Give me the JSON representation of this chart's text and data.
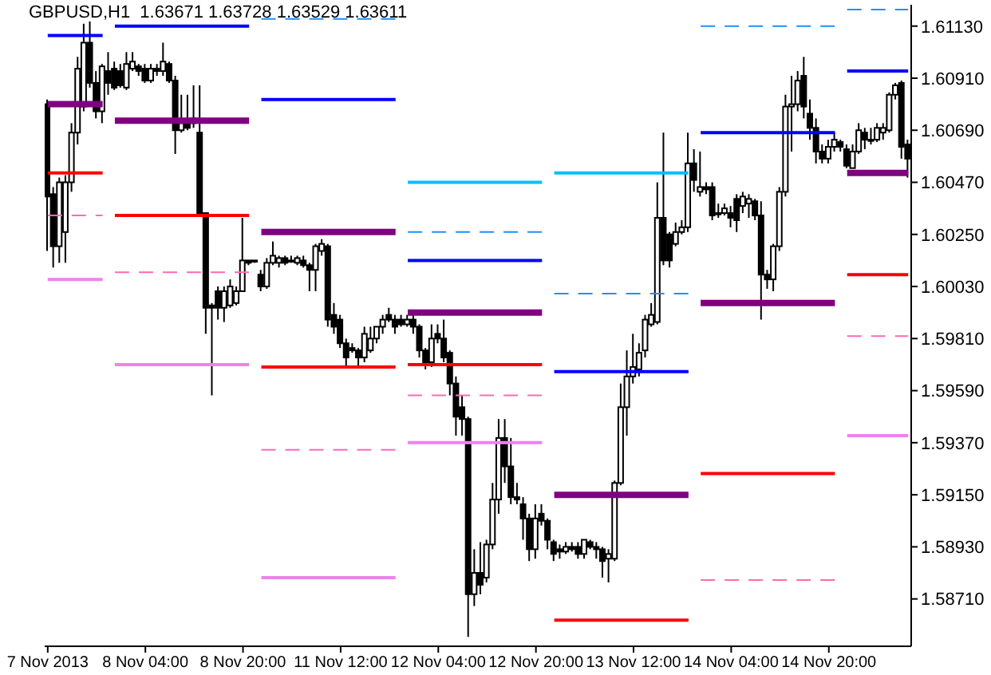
{
  "chart_data": {
    "type": "candlestick",
    "title": "GBPUSD,H1  1.63671 1.63728 1.63529 1.63611",
    "color": "#000000",
    "categories": [
      "7 Nov 2013",
      null,
      null,
      null,
      null,
      null,
      null,
      null,
      null,
      null,
      null,
      null,
      null,
      null,
      null,
      null,
      "8 Nov 04:00",
      null,
      null,
      null,
      null,
      null,
      null,
      null,
      null,
      null,
      null,
      null,
      null,
      null,
      null,
      null,
      "8 Nov 20:00",
      null,
      null,
      null,
      null,
      null,
      null,
      null,
      null,
      null,
      null,
      null,
      null,
      null,
      null,
      null,
      "11 Nov 12:00",
      null,
      null,
      null,
      null,
      null,
      null,
      null,
      null,
      null,
      null,
      null,
      null,
      null,
      null,
      null,
      "12 Nov 04:00",
      null,
      null,
      null,
      null,
      null,
      null,
      null,
      null,
      null,
      null,
      null,
      null,
      null,
      null,
      null,
      "12 Nov 20:00",
      null,
      null,
      null,
      null,
      null,
      null,
      null,
      null,
      null,
      null,
      null,
      null,
      null,
      null,
      null,
      "13 Nov 12:00",
      null,
      null,
      null,
      null,
      null,
      null,
      null,
      null,
      null,
      null,
      null,
      null,
      null,
      null,
      null,
      "14 Nov 04:00",
      null,
      null,
      null,
      null,
      null,
      null,
      null,
      null,
      null,
      null,
      null,
      null,
      null,
      null,
      null,
      "14 Nov 20:00",
      null,
      null,
      null,
      null,
      null,
      null,
      null,
      null,
      null,
      null,
      null,
      null,
      null
    ],
    "ohlc": [
      [
        1.608,
        1.6082,
        1.6018,
        1.6041
      ],
      [
        1.6042,
        1.6045,
        1.6011,
        1.602
      ],
      [
        1.602,
        1.6049,
        1.6013,
        1.6047
      ],
      [
        1.6026,
        1.605,
        1.6013,
        1.6047
      ],
      [
        1.6047,
        1.6072,
        1.6043,
        1.6068
      ],
      [
        1.6068,
        1.61,
        1.6063,
        1.6095
      ],
      [
        1.6079,
        1.6114,
        1.6077,
        1.6106
      ],
      [
        1.6106,
        1.6115,
        1.6087,
        1.6089
      ],
      [
        1.6089,
        1.6094,
        1.6074,
        1.6077
      ],
      [
        1.6077,
        1.6097,
        1.6072,
        1.6096
      ],
      [
        1.6094,
        1.6102,
        1.6084,
        1.6089
      ],
      [
        1.6095,
        1.6098,
        1.6086,
        1.6087
      ],
      [
        1.6094,
        1.6097,
        1.6087,
        1.6088
      ],
      [
        1.6087,
        1.6102,
        1.6086,
        1.6097
      ],
      [
        1.6095,
        1.6102,
        1.6094,
        1.6098
      ],
      [
        1.6096,
        1.6097,
        1.6092,
        1.6094
      ],
      [
        1.6095,
        1.6097,
        1.6089,
        1.609
      ],
      [
        1.609,
        1.6097,
        1.6089,
        1.6095
      ],
      [
        1.6095,
        1.6097,
        1.6092,
        1.6094
      ],
      [
        1.6094,
        1.6106,
        1.6092,
        1.6098
      ],
      [
        1.6097,
        1.6098,
        1.6089,
        1.609
      ],
      [
        1.609,
        1.6092,
        1.6059,
        1.6069
      ],
      [
        1.6069,
        1.6084,
        1.6068,
        1.6072
      ],
      [
        1.6072,
        1.6084,
        1.6069,
        1.607
      ],
      [
        1.6074,
        1.6088,
        1.607,
        1.6072
      ],
      [
        1.6068,
        1.6088,
        1.6033,
        1.6034
      ],
      [
        1.6034,
        1.6034,
        1.5983,
        1.5994
      ],
      [
        1.5995,
        1.5996,
        1.5957,
        1.5994
      ],
      [
        1.6001,
        1.6003,
        1.5989,
        1.5994
      ],
      [
        1.5994,
        1.6003,
        1.5988,
        1.6001
      ],
      [
        1.5995,
        1.6006,
        1.5994,
        1.6003
      ],
      [
        1.5996,
        1.6003,
        1.5995,
        1.6001
      ],
      [
        1.6001,
        1.6032,
        1.6001,
        1.6014
      ],
      [
        1.6014,
        1.6014,
        1.6012,
        1.6013
      ],
      [
        1.6014,
        1.6014,
        1.6013,
        1.6014
      ],
      [
        1.6008,
        1.601,
        1.6001,
        1.6003
      ],
      [
        1.6003,
        1.6015,
        1.6002,
        1.6013
      ],
      [
        1.6013,
        1.6022,
        1.6012,
        1.6016
      ],
      [
        1.6013,
        1.6016,
        1.6011,
        1.6015
      ],
      [
        1.6015,
        1.6016,
        1.6012,
        1.6013
      ],
      [
        1.6014,
        1.6016,
        1.6013,
        1.6014
      ],
      [
        1.6013,
        1.6016,
        1.6012,
        1.6015
      ],
      [
        1.6014,
        1.6016,
        1.6011,
        1.6012
      ],
      [
        1.6012,
        1.6013,
        1.6001,
        1.601
      ],
      [
        1.601,
        1.6021,
        1.6001,
        1.602
      ],
      [
        1.6018,
        1.6023,
        1.6016,
        1.6021
      ],
      [
        1.602,
        1.6021,
        1.5986,
        1.5989
      ],
      [
        1.5991,
        1.5996,
        1.5983,
        1.5986
      ],
      [
        1.5989,
        1.5991,
        1.5977,
        1.5979
      ],
      [
        1.5979,
        1.5981,
        1.5969,
        1.5973
      ],
      [
        1.5977,
        1.5979,
        1.5975,
        1.5976
      ],
      [
        1.5976,
        1.5977,
        1.5969,
        1.5973
      ],
      [
        1.5973,
        1.5986,
        1.5971,
        1.5983
      ],
      [
        1.5976,
        1.5986,
        1.5975,
        1.5981
      ],
      [
        1.5981,
        1.5986,
        1.5979,
        1.5986
      ],
      [
        1.5986,
        1.5991,
        1.5983,
        1.5989
      ],
      [
        1.5991,
        1.5994,
        1.5988,
        1.5989
      ],
      [
        1.5989,
        1.5991,
        1.5983,
        1.5986
      ],
      [
        1.5989,
        1.5991,
        1.5986,
        1.5987
      ],
      [
        1.5987,
        1.5991,
        1.5986,
        1.5989
      ],
      [
        1.5989,
        1.5991,
        1.5983,
        1.5986
      ],
      [
        1.5986,
        1.5987,
        1.5973,
        1.5976
      ],
      [
        1.5976,
        1.5977,
        1.5968,
        1.5971
      ],
      [
        1.5971,
        1.5987,
        1.5969,
        1.5981
      ],
      [
        1.5983,
        1.5987,
        1.5979,
        1.5981
      ],
      [
        1.5981,
        1.5989,
        1.5971,
        1.5973
      ],
      [
        1.5975,
        1.5976,
        1.5957,
        1.5962
      ],
      [
        1.5962,
        1.5965,
        1.594,
        1.5948
      ],
      [
        1.5952,
        1.5957,
        1.594,
        1.5947
      ],
      [
        1.5947,
        1.5948,
        1.5855,
        1.5873
      ],
      [
        1.5873,
        1.5892,
        1.5868,
        1.5882
      ],
      [
        1.5882,
        1.5895,
        1.5873,
        1.5877
      ],
      [
        1.588,
        1.5896,
        1.5878,
        1.5894
      ],
      [
        1.5894,
        1.592,
        1.5892,
        1.5913
      ],
      [
        1.5913,
        1.5947,
        1.5907,
        1.5939
      ],
      [
        1.5939,
        1.5947,
        1.592,
        1.5927
      ],
      [
        1.5927,
        1.5939,
        1.5911,
        1.5914
      ],
      [
        1.5914,
        1.592,
        1.5911,
        1.5913
      ],
      [
        1.5911,
        1.5914,
        1.5896,
        1.5905
      ],
      [
        1.5905,
        1.5907,
        1.5887,
        1.5892
      ],
      [
        1.5892,
        1.5911,
        1.5888,
        1.5905
      ],
      [
        1.5907,
        1.5911,
        1.5902,
        1.5904
      ],
      [
        1.5904,
        1.5905,
        1.5892,
        1.5896
      ],
      [
        1.5895,
        1.5896,
        1.5887,
        1.589
      ],
      [
        1.5892,
        1.5894,
        1.5888,
        1.5891
      ],
      [
        1.5891,
        1.5895,
        1.589,
        1.5893
      ],
      [
        1.5893,
        1.5895,
        1.5891,
        1.5892
      ],
      [
        1.5893,
        1.5895,
        1.5888,
        1.589
      ],
      [
        1.589,
        1.5896,
        1.5888,
        1.5896
      ],
      [
        1.5895,
        1.5896,
        1.5892,
        1.5893
      ],
      [
        1.5893,
        1.5895,
        1.5888,
        1.5892
      ],
      [
        1.5892,
        1.5893,
        1.588,
        1.5887
      ],
      [
        1.5888,
        1.5892,
        1.5878,
        1.589
      ],
      [
        1.5888,
        1.5921,
        1.5887,
        1.592
      ],
      [
        1.592,
        1.5962,
        1.5919,
        1.5952
      ],
      [
        1.5952,
        1.5976,
        1.594,
        1.5965
      ],
      [
        1.5965,
        1.5983,
        1.5962,
        1.5969
      ],
      [
        1.5968,
        1.5979,
        1.5965,
        1.5975
      ],
      [
        1.5976,
        1.5991,
        1.5973,
        1.5989
      ],
      [
        1.5987,
        1.5996,
        1.5986,
        1.5991
      ],
      [
        1.5988,
        1.6047,
        1.5987,
        1.6032
      ],
      [
        1.6032,
        1.6068,
        1.6012,
        1.6014
      ],
      [
        1.6025,
        1.6026,
        1.6011,
        1.6014
      ],
      [
        1.6021,
        1.603,
        1.602,
        1.6026
      ],
      [
        1.6026,
        1.6031,
        1.6025,
        1.6028
      ],
      [
        1.6028,
        1.6068,
        1.6026,
        1.6055
      ],
      [
        1.6055,
        1.6061,
        1.6043,
        1.6048
      ],
      [
        1.6043,
        1.606,
        1.6041,
        1.6045
      ],
      [
        1.6045,
        1.6047,
        1.6042,
        1.6044
      ],
      [
        1.6045,
        1.6047,
        1.6031,
        1.6033
      ],
      [
        1.6034,
        1.6038,
        1.6032,
        1.6034
      ],
      [
        1.6034,
        1.6038,
        1.6033,
        1.6036
      ],
      [
        1.6034,
        1.6037,
        1.6028,
        1.6032
      ],
      [
        1.604,
        1.6042,
        1.6026,
        1.6031
      ],
      [
        1.6037,
        1.6043,
        1.6034,
        1.6041
      ],
      [
        1.6038,
        1.6042,
        1.6032,
        1.604
      ],
      [
        1.6039,
        1.604,
        1.6031,
        1.6033
      ],
      [
        1.6033,
        1.6039,
        1.5989,
        1.6008
      ],
      [
        1.6008,
        1.601,
        1.6002,
        1.6006
      ],
      [
        1.6006,
        1.6021,
        1.6001,
        1.602
      ],
      [
        1.602,
        1.6045,
        1.6018,
        1.6043
      ],
      [
        1.6043,
        1.6084,
        1.6041,
        1.6079
      ],
      [
        1.6079,
        1.6092,
        1.606,
        1.608
      ],
      [
        1.608,
        1.6094,
        1.6077,
        1.609
      ],
      [
        1.6092,
        1.61,
        1.6074,
        1.6079
      ],
      [
        1.6076,
        1.6082,
        1.6065,
        1.607
      ],
      [
        1.607,
        1.6074,
        1.6055,
        1.606
      ],
      [
        1.606,
        1.6063,
        1.6055,
        1.6057
      ],
      [
        1.6057,
        1.6065,
        1.6055,
        1.6062
      ],
      [
        1.6062,
        1.6068,
        1.606,
        1.6065
      ],
      [
        1.6064,
        1.6065,
        1.606,
        1.6062
      ],
      [
        1.6061,
        1.6063,
        1.6053,
        1.6054
      ],
      [
        1.6053,
        1.6063,
        1.6053,
        1.606
      ],
      [
        1.606,
        1.6072,
        1.6059,
        1.6069
      ],
      [
        1.6068,
        1.607,
        1.6061,
        1.6065
      ],
      [
        1.6065,
        1.607,
        1.6063,
        1.6065
      ],
      [
        1.6065,
        1.6072,
        1.6064,
        1.607
      ],
      [
        1.6068,
        1.6072,
        1.6065,
        1.607
      ],
      [
        1.6069,
        1.6085,
        1.6068,
        1.6084
      ],
      [
        1.6084,
        1.6089,
        1.6082,
        1.6088
      ],
      [
        1.6089,
        1.609,
        1.6057,
        1.6062
      ],
      [
        1.6063,
        1.6065,
        1.6049,
        1.6057
      ]
    ],
    "series": [
      {
        "type": "line",
        "color": "#800080",
        "line_style": "solid",
        "values": [
          1.608,
          1.608,
          1.608,
          1.608,
          1.608,
          1.608,
          1.608,
          1.608,
          1.608,
          1.608,
          null,
          1.6073,
          1.6073,
          1.6073,
          1.6073,
          1.6073,
          1.6073,
          1.6073,
          1.6073,
          1.6073,
          1.6073,
          1.6073,
          1.6073,
          1.6073,
          1.6073,
          1.6073,
          1.6073,
          1.6073,
          1.6073,
          1.6073,
          1.6073,
          1.6073,
          1.6073,
          1.6073,
          null,
          1.6026,
          1.6026,
          1.6026,
          1.6026,
          1.6026,
          1.6026,
          1.6026,
          1.6026,
          1.6026,
          1.6026,
          1.6026,
          1.6026,
          1.6026,
          1.6026,
          1.6026,
          1.6026,
          1.6026,
          1.6026,
          1.6026,
          1.6026,
          1.6026,
          1.6026,
          1.6026,
          null,
          1.5992,
          1.5992,
          1.5992,
          1.5992,
          1.5992,
          1.5992,
          1.5992,
          1.5992,
          1.5992,
          1.5992,
          1.5992,
          1.5992,
          1.5992,
          1.5992,
          1.5992,
          1.5992,
          1.5992,
          1.5992,
          1.5992,
          1.5992,
          1.5992,
          1.5992,
          1.5992,
          null,
          1.5915,
          1.5915,
          1.5915,
          1.5915,
          1.5915,
          1.5915,
          1.5915,
          1.5915,
          1.5915,
          1.5915,
          1.5915,
          1.5915,
          1.5915,
          1.5915,
          1.5915,
          1.5915,
          1.5915,
          1.5915,
          1.5915,
          1.5915,
          1.5915,
          1.5915,
          1.5915,
          null,
          1.5996,
          1.5996,
          1.5996,
          1.5996,
          1.5996,
          1.5996,
          1.5996,
          1.5996,
          1.5996,
          1.5996,
          1.5996,
          1.5996,
          1.5996,
          1.5996,
          1.5996,
          1.5996,
          1.5996,
          1.5996,
          1.5996,
          1.5996,
          1.5996,
          1.5996,
          1.5996,
          null,
          1.6051,
          1.6051,
          1.6051,
          1.6051,
          1.6051,
          1.6051,
          1.6051,
          1.6051,
          1.6051,
          1.6051,
          1.6051
        ]
      },
      {
        "type": "line",
        "color": "#0000ff",
        "line_style": "solid",
        "values": [
          1.6109,
          1.6109,
          1.6109,
          1.6109,
          1.6109,
          1.6109,
          1.6109,
          1.6109,
          1.6109,
          1.6109,
          null,
          1.6113,
          1.6113,
          1.6113,
          1.6113,
          1.6113,
          1.6113,
          1.6113,
          1.6113,
          1.6113,
          1.6113,
          1.6113,
          1.6113,
          1.6113,
          1.6113,
          1.6113,
          1.6113,
          1.6113,
          1.6113,
          1.6113,
          1.6113,
          1.6113,
          1.6113,
          1.6113,
          null,
          1.6082,
          1.6082,
          1.6082,
          1.6082,
          1.6082,
          1.6082,
          1.6082,
          1.6082,
          1.6082,
          1.6082,
          1.6082,
          1.6082,
          1.6082,
          1.6082,
          1.6082,
          1.6082,
          1.6082,
          1.6082,
          1.6082,
          1.6082,
          1.6082,
          1.6082,
          1.6082,
          null,
          1.6014,
          1.6014,
          1.6014,
          1.6014,
          1.6014,
          1.6014,
          1.6014,
          1.6014,
          1.6014,
          1.6014,
          1.6014,
          1.6014,
          1.6014,
          1.6014,
          1.6014,
          1.6014,
          1.6014,
          1.6014,
          1.6014,
          1.6014,
          1.6014,
          1.6014,
          1.6014,
          null,
          1.5967,
          1.5967,
          1.5967,
          1.5967,
          1.5967,
          1.5967,
          1.5967,
          1.5967,
          1.5967,
          1.5967,
          1.5967,
          1.5967,
          1.5967,
          1.5967,
          1.5967,
          1.5967,
          1.5967,
          1.5967,
          1.5967,
          1.5967,
          1.5967,
          1.5967,
          1.5967,
          null,
          1.6068,
          1.6068,
          1.6068,
          1.6068,
          1.6068,
          1.6068,
          1.6068,
          1.6068,
          1.6068,
          1.6068,
          1.6068,
          1.6068,
          1.6068,
          1.6068,
          1.6068,
          1.6068,
          1.6068,
          1.6068,
          1.6068,
          1.6068,
          1.6068,
          1.6068,
          1.6068,
          null,
          1.6094,
          1.6094,
          1.6094,
          1.6094,
          1.6094,
          1.6094,
          1.6094,
          1.6094,
          1.6094,
          1.6094,
          1.6094
        ]
      },
      {
        "type": "line",
        "color": "#ff0000",
        "line_style": "solid",
        "values": [
          1.6051,
          1.6051,
          1.6051,
          1.6051,
          1.6051,
          1.6051,
          1.6051,
          1.6051,
          1.6051,
          1.6051,
          null,
          1.6033,
          1.6033,
          1.6033,
          1.6033,
          1.6033,
          1.6033,
          1.6033,
          1.6033,
          1.6033,
          1.6033,
          1.6033,
          1.6033,
          1.6033,
          1.6033,
          1.6033,
          1.6033,
          1.6033,
          1.6033,
          1.6033,
          1.6033,
          1.6033,
          1.6033,
          1.6033,
          null,
          1.5969,
          1.5969,
          1.5969,
          1.5969,
          1.5969,
          1.5969,
          1.5969,
          1.5969,
          1.5969,
          1.5969,
          1.5969,
          1.5969,
          1.5969,
          1.5969,
          1.5969,
          1.5969,
          1.5969,
          1.5969,
          1.5969,
          1.5969,
          1.5969,
          1.5969,
          1.5969,
          null,
          1.597,
          1.597,
          1.597,
          1.597,
          1.597,
          1.597,
          1.597,
          1.597,
          1.597,
          1.597,
          1.597,
          1.597,
          1.597,
          1.597,
          1.597,
          1.597,
          1.597,
          1.597,
          1.597,
          1.597,
          1.597,
          1.597,
          1.597,
          null,
          1.5862,
          1.5862,
          1.5862,
          1.5862,
          1.5862,
          1.5862,
          1.5862,
          1.5862,
          1.5862,
          1.5862,
          1.5862,
          1.5862,
          1.5862,
          1.5862,
          1.5862,
          1.5862,
          1.5862,
          1.5862,
          1.5862,
          1.5862,
          1.5862,
          1.5862,
          1.5862,
          null,
          1.5924,
          1.5924,
          1.5924,
          1.5924,
          1.5924,
          1.5924,
          1.5924,
          1.5924,
          1.5924,
          1.5924,
          1.5924,
          1.5924,
          1.5924,
          1.5924,
          1.5924,
          1.5924,
          1.5924,
          1.5924,
          1.5924,
          1.5924,
          1.5924,
          1.5924,
          1.5924,
          null,
          1.6008,
          1.6008,
          1.6008,
          1.6008,
          1.6008,
          1.6008,
          1.6008,
          1.6008,
          1.6008,
          1.6008,
          1.6008
        ]
      },
      {
        "type": "line",
        "color": "#ee82ee",
        "line_style": "solid",
        "values": [
          1.6006,
          1.6006,
          1.6006,
          1.6006,
          1.6006,
          1.6006,
          1.6006,
          1.6006,
          1.6006,
          1.6006,
          null,
          1.597,
          1.597,
          1.597,
          1.597,
          1.597,
          1.597,
          1.597,
          1.597,
          1.597,
          1.597,
          1.597,
          1.597,
          1.597,
          1.597,
          1.597,
          1.597,
          1.597,
          1.597,
          1.597,
          1.597,
          1.597,
          1.597,
          1.597,
          null,
          1.588,
          1.588,
          1.588,
          1.588,
          1.588,
          1.588,
          1.588,
          1.588,
          1.588,
          1.588,
          1.588,
          1.588,
          1.588,
          1.588,
          1.588,
          1.588,
          1.588,
          1.588,
          1.588,
          1.588,
          1.588,
          1.588,
          1.588,
          null,
          1.5937,
          1.5937,
          1.5937,
          1.5937,
          1.5937,
          1.5937,
          1.5937,
          1.5937,
          1.5937,
          1.5937,
          1.5937,
          1.5937,
          1.5937,
          1.5937,
          1.5937,
          1.5937,
          1.5937,
          1.5937,
          1.5937,
          1.5937,
          1.5937,
          1.5937,
          1.5937,
          null,
          null,
          null,
          null,
          null,
          null,
          null,
          null,
          null,
          null,
          null,
          null,
          null,
          null,
          null,
          null,
          null,
          null,
          null,
          null,
          null,
          null,
          null,
          null,
          null,
          null,
          null,
          null,
          null,
          null,
          null,
          null,
          null,
          null,
          null,
          null,
          null,
          null,
          null,
          null,
          null,
          null,
          null,
          null,
          null,
          null,
          null,
          null,
          null,
          1.594,
          1.594,
          1.594,
          1.594,
          1.594,
          1.594,
          1.594,
          1.594,
          1.594,
          1.594,
          1.594
        ]
      },
      {
        "type": "line",
        "color": "#00bfff",
        "line_style": "solid",
        "values": [
          null,
          null,
          null,
          null,
          null,
          null,
          null,
          null,
          null,
          null,
          null,
          null,
          null,
          null,
          null,
          null,
          null,
          null,
          null,
          null,
          null,
          null,
          null,
          null,
          null,
          null,
          null,
          null,
          null,
          null,
          null,
          null,
          null,
          null,
          null,
          null,
          null,
          null,
          null,
          null,
          null,
          null,
          null,
          null,
          null,
          null,
          null,
          null,
          null,
          null,
          null,
          null,
          null,
          null,
          null,
          null,
          null,
          null,
          null,
          1.6047,
          1.6047,
          1.6047,
          1.6047,
          1.6047,
          1.6047,
          1.6047,
          1.6047,
          1.6047,
          1.6047,
          1.6047,
          1.6047,
          1.6047,
          1.6047,
          1.6047,
          1.6047,
          1.6047,
          1.6047,
          1.6047,
          1.6047,
          1.6047,
          1.6047,
          1.6047,
          null,
          1.6051,
          1.6051,
          1.6051,
          1.6051,
          1.6051,
          1.6051,
          1.6051,
          1.6051,
          1.6051,
          1.6051,
          1.6051,
          1.6051,
          1.6051,
          1.6051,
          1.6051,
          1.6051,
          1.6051,
          1.6051,
          1.6051,
          1.6051,
          1.6051,
          1.6051,
          1.6051,
          null,
          null,
          null,
          null,
          null,
          null,
          null,
          null,
          null,
          null,
          null,
          null,
          null,
          null,
          null,
          null,
          null,
          null,
          null,
          null,
          null,
          null,
          null,
          null,
          null,
          null,
          null,
          null,
          null,
          null,
          null,
          null,
          null,
          null,
          null,
          null
        ]
      },
      {
        "type": "line",
        "color": "#1e90ff",
        "line_style": "dashed",
        "values": [
          null,
          null,
          null,
          null,
          null,
          null,
          null,
          null,
          null,
          null,
          null,
          null,
          null,
          null,
          null,
          null,
          null,
          null,
          null,
          null,
          null,
          null,
          null,
          null,
          null,
          null,
          null,
          null,
          null,
          null,
          null,
          null,
          null,
          null,
          null,
          1.6116,
          1.6116,
          1.6116,
          1.6116,
          1.6116,
          1.6116,
          1.6116,
          1.6116,
          1.6116,
          1.6116,
          1.6116,
          1.6116,
          1.6116,
          1.6116,
          1.6116,
          1.6116,
          1.6116,
          1.6116,
          1.6116,
          1.6116,
          1.6116,
          1.6116,
          1.6116,
          null,
          1.6026,
          1.6026,
          1.6026,
          1.6026,
          1.6026,
          1.6026,
          1.6026,
          1.6026,
          1.6026,
          1.6026,
          1.6026,
          1.6026,
          1.6026,
          1.6026,
          1.6026,
          1.6026,
          1.6026,
          1.6026,
          1.6026,
          1.6026,
          1.6026,
          1.6026,
          1.6026,
          null,
          1.6,
          1.6,
          1.6,
          1.6,
          1.6,
          1.6,
          1.6,
          1.6,
          1.6,
          1.6,
          1.6,
          1.6,
          1.6,
          1.6,
          1.6,
          1.6,
          1.6,
          1.6,
          1.6,
          1.6,
          1.6,
          1.6,
          1.6,
          null,
          1.6113,
          1.6113,
          1.6113,
          1.6113,
          1.6113,
          1.6113,
          1.6113,
          1.6113,
          1.6113,
          1.6113,
          1.6113,
          1.6113,
          1.6113,
          1.6113,
          1.6113,
          1.6113,
          1.6113,
          1.6113,
          1.6113,
          1.6113,
          1.6113,
          1.6113,
          1.6113,
          null,
          1.612,
          1.612,
          1.612,
          1.612,
          1.612,
          1.612,
          1.612,
          1.612,
          1.612,
          1.612,
          1.612
        ]
      },
      {
        "type": "line",
        "color": "#ff69b4",
        "line_style": "dashed",
        "values": [
          1.6033,
          1.6033,
          1.6033,
          1.6033,
          1.6033,
          1.6033,
          1.6033,
          1.6033,
          1.6033,
          1.6033,
          null,
          1.6009,
          1.6009,
          1.6009,
          1.6009,
          1.6009,
          1.6009,
          1.6009,
          1.6009,
          1.6009,
          1.6009,
          1.6009,
          1.6009,
          1.6009,
          1.6009,
          1.6009,
          1.6009,
          1.6009,
          1.6009,
          1.6009,
          1.6009,
          1.6009,
          1.6009,
          1.6009,
          null,
          1.5934,
          1.5934,
          1.5934,
          1.5934,
          1.5934,
          1.5934,
          1.5934,
          1.5934,
          1.5934,
          1.5934,
          1.5934,
          1.5934,
          1.5934,
          1.5934,
          1.5934,
          1.5934,
          1.5934,
          1.5934,
          1.5934,
          1.5934,
          1.5934,
          1.5934,
          1.5934,
          null,
          1.5957,
          1.5957,
          1.5957,
          1.5957,
          1.5957,
          1.5957,
          1.5957,
          1.5957,
          1.5957,
          1.5957,
          1.5957,
          1.5957,
          1.5957,
          1.5957,
          1.5957,
          1.5957,
          1.5957,
          1.5957,
          1.5957,
          1.5957,
          1.5957,
          1.5957,
          1.5957,
          null,
          null,
          null,
          null,
          null,
          null,
          null,
          null,
          null,
          null,
          null,
          null,
          null,
          null,
          null,
          null,
          null,
          null,
          null,
          null,
          null,
          null,
          null,
          null,
          null,
          1.5879,
          1.5879,
          1.5879,
          1.5879,
          1.5879,
          1.5879,
          1.5879,
          1.5879,
          1.5879,
          1.5879,
          1.5879,
          1.5879,
          1.5879,
          1.5879,
          1.5879,
          1.5879,
          1.5879,
          1.5879,
          1.5879,
          1.5879,
          1.5879,
          1.5879,
          1.5879,
          null,
          1.5982,
          1.5982,
          1.5982,
          1.5982,
          1.5982,
          1.5982,
          1.5982,
          1.5982,
          1.5982,
          1.5982,
          1.5982
        ]
      }
    ],
    "ylim": [
      1.5851,
      1.6122
    ],
    "yticks": [
      {
        "value": 1.6113,
        "label": "1.61130"
      },
      {
        "value": 1.6091,
        "label": "1.60910"
      },
      {
        "value": 1.6069,
        "label": "1.60690"
      },
      {
        "value": 1.6047,
        "label": "1.60470"
      },
      {
        "value": 1.6025,
        "label": "1.60250"
      },
      {
        "value": 1.6003,
        "label": "1.60030"
      },
      {
        "value": 1.5981,
        "label": "1.59810"
      },
      {
        "value": 1.5959,
        "label": "1.59590"
      },
      {
        "value": 1.5937,
        "label": "1.59370"
      },
      {
        "value": 1.5915,
        "label": "1.59150"
      },
      {
        "value": 1.5893,
        "label": "1.58930"
      },
      {
        "value": 1.5871,
        "label": "1.58710"
      }
    ]
  }
}
